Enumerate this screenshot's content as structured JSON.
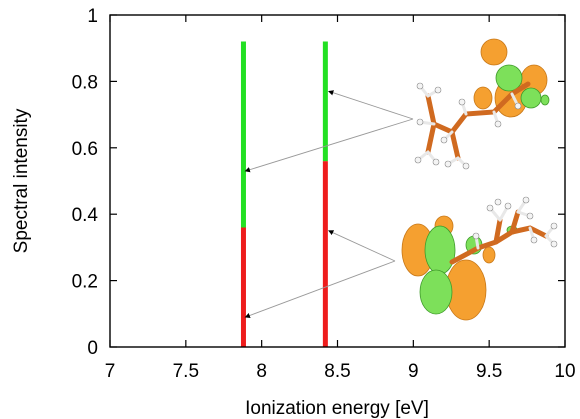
{
  "chart_data": {
    "type": "bar",
    "title": "",
    "xlabel": "Ionization energy [eV]",
    "ylabel": "Spectral intensity",
    "xlim": [
      7,
      10
    ],
    "ylim": [
      0,
      1
    ],
    "x_ticks": [
      "7",
      "7.5",
      "8",
      "8.5",
      "9",
      "9.5",
      "10"
    ],
    "y_ticks": [
      "0",
      "0.2",
      "0.4",
      "0.6",
      "0.8",
      "1"
    ],
    "grid": false,
    "legend": "none",
    "bars": [
      {
        "x": 7.88,
        "segments": [
          {
            "from": 0,
            "to": 0.36,
            "color": "#ee1c1c"
          },
          {
            "from": 0.36,
            "to": 0.92,
            "color": "#22e022"
          }
        ]
      },
      {
        "x": 8.42,
        "segments": [
          {
            "from": 0,
            "to": 0.56,
            "color": "#ee1c1c"
          },
          {
            "from": 0.56,
            "to": 0.92,
            "color": "#22e022"
          }
        ]
      }
    ],
    "annotations": [
      {
        "type": "arrow",
        "target": [
          8.43,
          0.77
        ],
        "molecule": "upper-orbital"
      },
      {
        "type": "arrow",
        "target": [
          7.88,
          0.53
        ],
        "molecule": "upper-orbital"
      },
      {
        "type": "arrow",
        "target": [
          8.43,
          0.35
        ],
        "molecule": "lower-orbital"
      },
      {
        "type": "arrow",
        "target": [
          7.88,
          0.09
        ],
        "molecule": "lower-orbital"
      }
    ],
    "colors": {
      "lobe_orange": "#f5a030",
      "lobe_green": "#7de05a",
      "bond": "#d06a20"
    }
  }
}
